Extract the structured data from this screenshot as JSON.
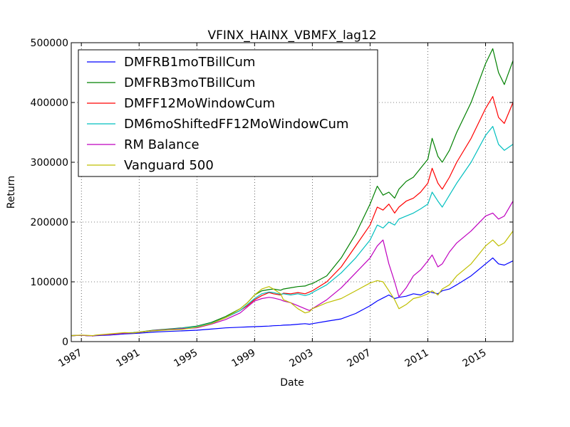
{
  "chart_data": {
    "type": "line",
    "title": "VFINX_HAINX_VBMFX_lag12",
    "xlabel": "Date",
    "ylabel": "Return",
    "xlim": [
      1986.3,
      2016.9
    ],
    "ylim": [
      0,
      500000
    ],
    "x_ticks": [
      1987,
      1991,
      1995,
      1999,
      2003,
      2007,
      2011,
      2015
    ],
    "x_tick_labels": [
      "1987",
      "1991",
      "1995",
      "1999",
      "2003",
      "2007",
      "2011",
      "2015"
    ],
    "y_ticks": [
      0,
      100000,
      200000,
      300000,
      400000,
      500000
    ],
    "y_tick_labels": [
      "0",
      "100000",
      "200000",
      "300000",
      "400000",
      "500000"
    ],
    "grid": true,
    "legend_position": "top-left",
    "x": [
      1986.3,
      1987,
      1987.8,
      1988,
      1989,
      1990,
      1990.6,
      1991,
      1992,
      1993,
      1994,
      1995,
      1996,
      1997,
      1998,
      1998.5,
      1999,
      1999.5,
      2000,
      2000.3,
      2000.8,
      2001,
      2001.5,
      2002,
      2002.5,
      2002.8,
      2003,
      2004,
      2005,
      2006,
      2007,
      2007.5,
      2007.9,
      2008.3,
      2008.7,
      2009,
      2009.5,
      2010,
      2010.5,
      2011,
      2011.3,
      2011.7,
      2012,
      2012.5,
      2013,
      2014,
      2015,
      2015.5,
      2015.9,
      2016.3,
      2016.9
    ],
    "series": [
      {
        "name": "DMFRB1moTBillCum",
        "color": "#0000ff",
        "values": [
          10000,
          10500,
          9500,
          10000,
          11000,
          13000,
          13500,
          14000,
          16000,
          17000,
          18000,
          19000,
          21000,
          23000,
          24000,
          24500,
          25000,
          25500,
          26000,
          26500,
          27000,
          27500,
          28000,
          29000,
          30000,
          29000,
          30000,
          34000,
          38000,
          47000,
          60000,
          68000,
          73000,
          78000,
          72000,
          74000,
          76000,
          80000,
          78000,
          84000,
          82000,
          80000,
          85000,
          88000,
          95000,
          110000,
          130000,
          140000,
          130000,
          128000,
          135000
        ]
      },
      {
        "name": "DMFRB3moTBillCum",
        "color": "#008000",
        "values": [
          10000,
          10500,
          9500,
          10500,
          12000,
          14500,
          15000,
          16000,
          19000,
          21000,
          23000,
          26000,
          32000,
          42000,
          55000,
          65000,
          78000,
          85000,
          87000,
          88000,
          86000,
          88000,
          90000,
          92000,
          93000,
          96000,
          97000,
          110000,
          140000,
          180000,
          230000,
          260000,
          245000,
          250000,
          240000,
          255000,
          268000,
          275000,
          290000,
          305000,
          340000,
          310000,
          300000,
          320000,
          350000,
          400000,
          465000,
          490000,
          450000,
          430000,
          470000
        ]
      },
      {
        "name": "DMFF12MoWindowCum",
        "color": "#ff0000",
        "values": [
          10000,
          10500,
          9500,
          10500,
          12000,
          14000,
          14500,
          15500,
          18500,
          20500,
          22500,
          25000,
          31000,
          40000,
          52000,
          60000,
          70000,
          77000,
          82000,
          80000,
          78000,
          81000,
          80000,
          82000,
          80000,
          83000,
          85000,
          100000,
          125000,
          160000,
          195000,
          225000,
          220000,
          230000,
          215000,
          225000,
          235000,
          240000,
          250000,
          265000,
          290000,
          265000,
          255000,
          275000,
          300000,
          340000,
          390000,
          410000,
          375000,
          365000,
          400000
        ]
      },
      {
        "name": "DM6moShiftedFF12MoWindowCum",
        "color": "#00bfbf",
        "values": [
          10000,
          10500,
          9500,
          10500,
          12000,
          14000,
          14500,
          15500,
          18500,
          20500,
          22500,
          25000,
          31000,
          40000,
          52000,
          62000,
          72000,
          80000,
          83000,
          82000,
          79000,
          80000,
          78000,
          80000,
          77000,
          79000,
          82000,
          95000,
          115000,
          140000,
          170000,
          195000,
          190000,
          200000,
          195000,
          205000,
          210000,
          215000,
          222000,
          230000,
          250000,
          235000,
          225000,
          245000,
          265000,
          300000,
          345000,
          360000,
          330000,
          320000,
          330000
        ]
      },
      {
        "name": "RM Balance",
        "color": "#bf00bf",
        "values": [
          10000,
          10500,
          9500,
          10500,
          12000,
          14000,
          14500,
          15500,
          18500,
          20000,
          21500,
          23000,
          29000,
          37000,
          48000,
          58000,
          68000,
          72000,
          74000,
          73000,
          70000,
          68000,
          65000,
          60000,
          55000,
          52000,
          55000,
          70000,
          90000,
          115000,
          140000,
          160000,
          170000,
          130000,
          100000,
          75000,
          90000,
          110000,
          120000,
          135000,
          145000,
          125000,
          130000,
          150000,
          165000,
          185000,
          210000,
          215000,
          205000,
          210000,
          235000
        ]
      },
      {
        "name": "Vanguard 500",
        "color": "#bfbf00",
        "values": [
          10000,
          11000,
          10000,
          11000,
          13000,
          15000,
          14500,
          16000,
          18000,
          19500,
          20500,
          24000,
          30000,
          40000,
          55000,
          65000,
          78000,
          88000,
          92000,
          88000,
          80000,
          70000,
          65000,
          55000,
          48000,
          50000,
          55000,
          65000,
          72000,
          85000,
          98000,
          102000,
          100000,
          85000,
          70000,
          55000,
          62000,
          72000,
          75000,
          80000,
          85000,
          78000,
          88000,
          95000,
          110000,
          130000,
          160000,
          170000,
          160000,
          165000,
          185000
        ]
      }
    ]
  }
}
